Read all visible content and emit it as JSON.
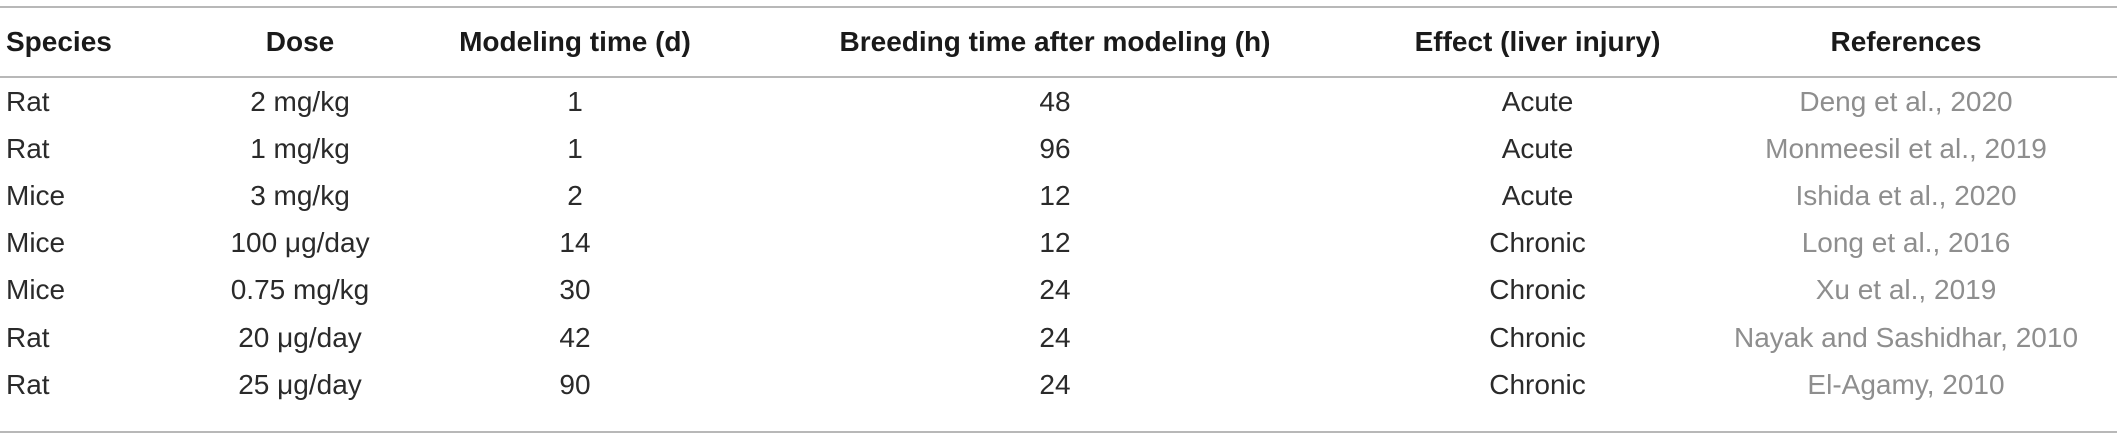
{
  "table": {
    "columns": [
      "Species",
      "Dose",
      "Modeling time (d)",
      "Breeding time after modeling (h)",
      "Effect (liver injury)",
      "References"
    ],
    "rows": [
      {
        "species": "Rat",
        "dose": "2 mg/kg",
        "modeling_time": "1",
        "breeding_time": "48",
        "effect": "Acute",
        "reference": "Deng et al., 2020"
      },
      {
        "species": "Rat",
        "dose": "1 mg/kg",
        "modeling_time": "1",
        "breeding_time": "96",
        "effect": "Acute",
        "reference": "Monmeesil et al., 2019"
      },
      {
        "species": "Mice",
        "dose": "3 mg/kg",
        "modeling_time": "2",
        "breeding_time": "12",
        "effect": "Acute",
        "reference": "Ishida et al., 2020"
      },
      {
        "species": "Mice",
        "dose": "100 μg/day",
        "modeling_time": "14",
        "breeding_time": "12",
        "effect": "Chronic",
        "reference": "Long et al., 2016"
      },
      {
        "species": "Mice",
        "dose": "0.75 mg/kg",
        "modeling_time": "30",
        "breeding_time": "24",
        "effect": "Chronic",
        "reference": "Xu et al., 2019"
      },
      {
        "species": "Rat",
        "dose": "20 μg/day",
        "modeling_time": "42",
        "breeding_time": "24",
        "effect": "Chronic",
        "reference": "Nayak and Sashidhar, 2010"
      },
      {
        "species": "Rat",
        "dose": "25 μg/day",
        "modeling_time": "90",
        "breeding_time": "24",
        "effect": "Chronic",
        "reference": "El-Agamy, 2010"
      }
    ]
  }
}
